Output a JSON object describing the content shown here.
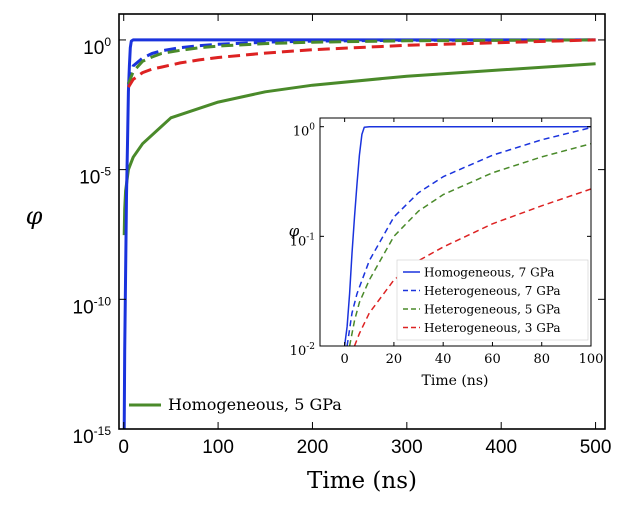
{
  "chart_data": [
    {
      "type": "line",
      "xlabel": "Time (ns)",
      "ylabel": "φ",
      "yscale": "log",
      "xlim": [
        -5,
        510
      ],
      "ylim": [
        1e-15,
        10
      ],
      "xticks": [
        "0",
        "100",
        "200",
        "300",
        "400",
        "500"
      ],
      "yticks": [
        {
          "base": "10",
          "exp": "0"
        },
        {
          "base": "10",
          "exp": "-5"
        },
        {
          "base": "10",
          "exp": "-10"
        },
        {
          "base": "10",
          "exp": "-15"
        }
      ],
      "legend": {
        "position": "bottom-left",
        "entries": [
          "Homogeneous, 5 GPa"
        ]
      },
      "series": [
        {
          "name": "Homogeneous, 5 GPa",
          "color": "#4a8a2a",
          "dash": "solid",
          "x": [
            0.5,
            1,
            2,
            5,
            10,
            20,
            50,
            100,
            150,
            200,
            300,
            400,
            500
          ],
          "y": [
            3e-08,
            3e-07,
            1.5e-06,
            1e-05,
            3e-05,
            0.0001,
            0.001,
            0.004,
            0.01,
            0.018,
            0.04,
            0.07,
            0.12
          ]
        },
        {
          "name": "",
          "color": "#1a33dd",
          "dash": "solid",
          "x": [
            0.5,
            1,
            2,
            3,
            4,
            5,
            6,
            7,
            8,
            10,
            20,
            500
          ],
          "y": [
            1e-15,
            1e-12,
            1e-09,
            1e-06,
            0.0001,
            0.01,
            0.1,
            0.5,
            0.9,
            1,
            1,
            1
          ]
        },
        {
          "name": "",
          "color": "#1a33dd",
          "dash": "dashed",
          "x": [
            5,
            10,
            20,
            30,
            40,
            60,
            80,
            100,
            150,
            200,
            300,
            500
          ],
          "y": [
            0.02,
            0.1,
            0.2,
            0.3,
            0.38,
            0.5,
            0.6,
            0.68,
            0.82,
            0.9,
            0.97,
            1
          ]
        },
        {
          "name": "",
          "color": "#4a8a2a",
          "dash": "dashed",
          "x": [
            5,
            10,
            20,
            30,
            40,
            60,
            80,
            100,
            150,
            200,
            300,
            500
          ],
          "y": [
            0.02,
            0.06,
            0.15,
            0.22,
            0.3,
            0.4,
            0.5,
            0.58,
            0.72,
            0.82,
            0.93,
            1
          ]
        },
        {
          "name": "",
          "color": "#dd2222",
          "dash": "dashed",
          "x": [
            5,
            10,
            20,
            30,
            40,
            60,
            80,
            100,
            150,
            200,
            300,
            500
          ],
          "y": [
            0.015,
            0.03,
            0.055,
            0.075,
            0.09,
            0.13,
            0.17,
            0.21,
            0.31,
            0.42,
            0.62,
            1
          ]
        }
      ]
    },
    {
      "type": "line",
      "xlabel": "Time (ns)",
      "ylabel": "φ",
      "yscale": "log",
      "xlim": [
        -10,
        100
      ],
      "ylim": [
        0.01,
        1.2
      ],
      "xticks": [
        "0",
        "20",
        "40",
        "60",
        "80",
        "100"
      ],
      "yticks": [
        {
          "base": "10",
          "exp": "0"
        },
        {
          "base": "10",
          "exp": "-1"
        },
        {
          "base": "10",
          "exp": "-2"
        }
      ],
      "legend": {
        "position": "bottom-right",
        "entries": [
          "Homogeneous, 7 GPa",
          "Heterogeneous, 7 GPa",
          "Heterogeneous, 5 GPa",
          "Heterogeneous, 3 GPa"
        ]
      },
      "series": [
        {
          "name": "Homogeneous, 7 GPa",
          "color": "#1a33dd",
          "dash": "solid",
          "x": [
            0,
            1,
            2,
            3,
            4,
            5,
            6,
            7,
            8,
            10,
            100
          ],
          "y": [
            0.01,
            0.015,
            0.03,
            0.07,
            0.15,
            0.3,
            0.55,
            0.85,
            0.99,
            1,
            1
          ]
        },
        {
          "name": "Heterogeneous, 7 GPa",
          "color": "#1a33dd",
          "dash": "dashed",
          "x": [
            1,
            3,
            5,
            10,
            20,
            30,
            40,
            60,
            80,
            100
          ],
          "y": [
            0.01,
            0.02,
            0.03,
            0.06,
            0.15,
            0.25,
            0.35,
            0.55,
            0.76,
            0.98
          ]
        },
        {
          "name": "Heterogeneous, 5 GPa",
          "color": "#4a8a2a",
          "dash": "dashed",
          "x": [
            2,
            4,
            6,
            10,
            20,
            30,
            40,
            60,
            80,
            100
          ],
          "y": [
            0.01,
            0.017,
            0.025,
            0.04,
            0.1,
            0.17,
            0.24,
            0.38,
            0.53,
            0.7
          ]
        },
        {
          "name": "Heterogeneous, 3 GPa",
          "color": "#dd2222",
          "dash": "dashed",
          "x": [
            4,
            6,
            10,
            20,
            30,
            40,
            60,
            80,
            100
          ],
          "y": [
            0.01,
            0.013,
            0.02,
            0.04,
            0.06,
            0.08,
            0.13,
            0.19,
            0.27
          ]
        }
      ]
    }
  ]
}
